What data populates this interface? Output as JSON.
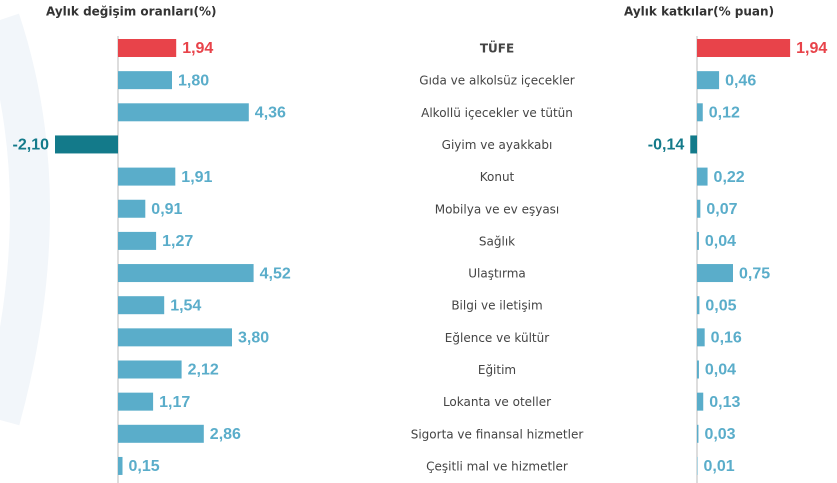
{
  "chart_data": [
    {
      "type": "hbar",
      "title": "Aylık değişim oranları(%)",
      "categories": [
        "TÜFE",
        "Gıda ve alkolsüz içecekler",
        "Alkollü içecekler ve tütün",
        "Giyim ve ayakkabı",
        "Konut",
        "Mobilya ve ev eşyası",
        "Sağlık",
        "Ulaştırma",
        "Bilgi ve iletişim",
        "Eğlence ve kültür",
        "Eğitim",
        "Lokanta ve oteller",
        "Sigorta ve finansal hizmetler",
        "Çeşitli mal ve hizmetler"
      ],
      "values": [
        1.94,
        1.8,
        4.36,
        -2.1,
        1.91,
        0.91,
        1.27,
        4.52,
        1.54,
        3.8,
        2.12,
        1.17,
        2.86,
        0.15
      ],
      "value_labels": [
        "1,94",
        "1,80",
        "4,36",
        "-2,10",
        "1,91",
        "0,91",
        "1,27",
        "4,52",
        "1,54",
        "3,80",
        "2,12",
        "1,17",
        "2,86",
        "0,15"
      ],
      "colors": [
        "#e8434a",
        "#5aadca",
        "#5aadca",
        "#137a8a",
        "#5aadca",
        "#5aadca",
        "#5aadca",
        "#5aadca",
        "#5aadca",
        "#5aadca",
        "#5aadca",
        "#5aadca",
        "#5aadca",
        "#5aadca"
      ]
    },
    {
      "type": "hbar",
      "title": "Aylık katkılar(% puan)",
      "values": [
        1.94,
        0.46,
        0.12,
        -0.14,
        0.22,
        0.07,
        0.04,
        0.75,
        0.05,
        0.16,
        0.04,
        0.13,
        0.03,
        0.01
      ],
      "value_labels": [
        "1,94",
        "0,46",
        "0,12",
        "-0,14",
        "0,22",
        "0,07",
        "0,04",
        "0,75",
        "0,05",
        "0,16",
        "0,04",
        "0,13",
        "0,03",
        "0,01"
      ],
      "colors": [
        "#e8434a",
        "#5aadca",
        "#5aadca",
        "#137a8a",
        "#5aadca",
        "#5aadca",
        "#5aadca",
        "#5aadca",
        "#5aadca",
        "#5aadca",
        "#5aadca",
        "#5aadca",
        "#5aadca",
        "#5aadca"
      ]
    }
  ]
}
